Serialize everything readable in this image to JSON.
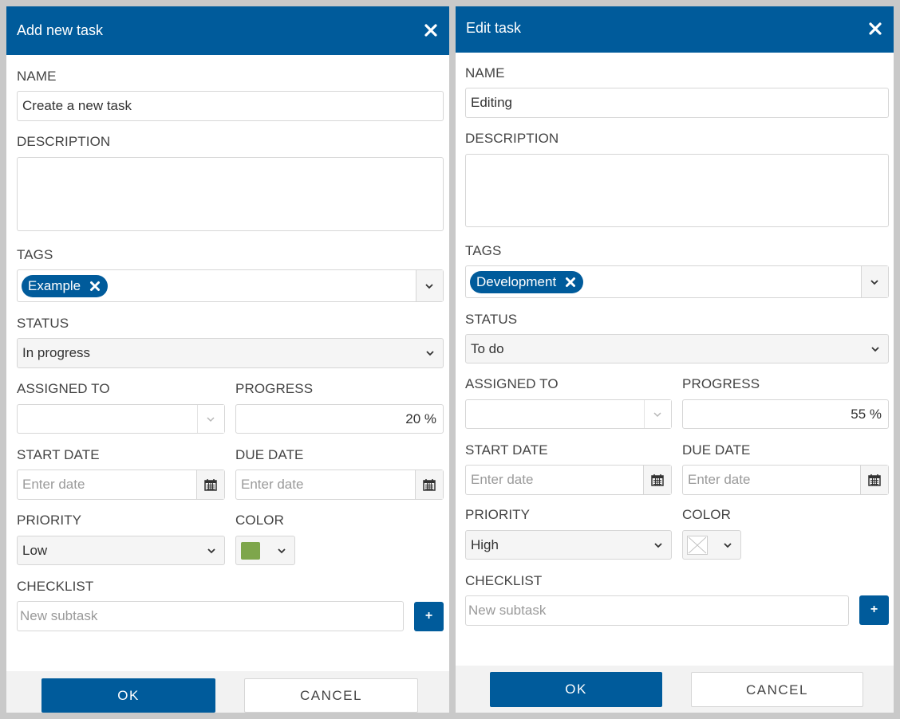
{
  "add_dialog": {
    "title": "Add new task",
    "labels": {
      "name": "NAME",
      "description": "DESCRIPTION",
      "tags": "TAGS",
      "status": "STATUS",
      "assigned_to": "ASSIGNED TO",
      "progress": "PROGRESS",
      "start_date": "START DATE",
      "due_date": "DUE DATE",
      "priority": "PRIORITY",
      "color": "COLOR",
      "checklist": "CHECKLIST"
    },
    "name_value": "Create a new task",
    "description_value": "",
    "tags": [
      "Example"
    ],
    "status_value": "In progress",
    "assigned_to_value": "",
    "progress_value": "20 %",
    "start_date_placeholder": "Enter date",
    "due_date_placeholder": "Enter date",
    "priority_value": "Low",
    "color_value": "#7ea64b",
    "subtask_placeholder": "New subtask",
    "add_subtask_label": "+",
    "ok_label": "OK",
    "cancel_label": "CANCEL"
  },
  "edit_dialog": {
    "title": "Edit task",
    "labels": {
      "name": "NAME",
      "description": "DESCRIPTION",
      "tags": "TAGS",
      "status": "STATUS",
      "assigned_to": "ASSIGNED TO",
      "progress": "PROGRESS",
      "start_date": "START DATE",
      "due_date": "DUE DATE",
      "priority": "PRIORITY",
      "color": "COLOR",
      "checklist": "CHECKLIST"
    },
    "name_value": "Editing",
    "description_value": "",
    "tags": [
      "Development"
    ],
    "status_value": "To do",
    "assigned_to_value": "",
    "progress_value": "55 %",
    "start_date_placeholder": "Enter date",
    "due_date_placeholder": "Enter date",
    "priority_value": "High",
    "color_value": "none",
    "subtask_placeholder": "New subtask",
    "add_subtask_label": "+",
    "ok_label": "OK",
    "cancel_label": "CANCEL"
  },
  "icons": {
    "close": "close-icon",
    "chevron": "chevron-down-icon",
    "calendar": "calendar-icon",
    "tag_remove": "tag-remove-icon"
  },
  "colors": {
    "header": "#005b9b",
    "accent": "#005b9b",
    "tag_bg": "#005b9b"
  }
}
